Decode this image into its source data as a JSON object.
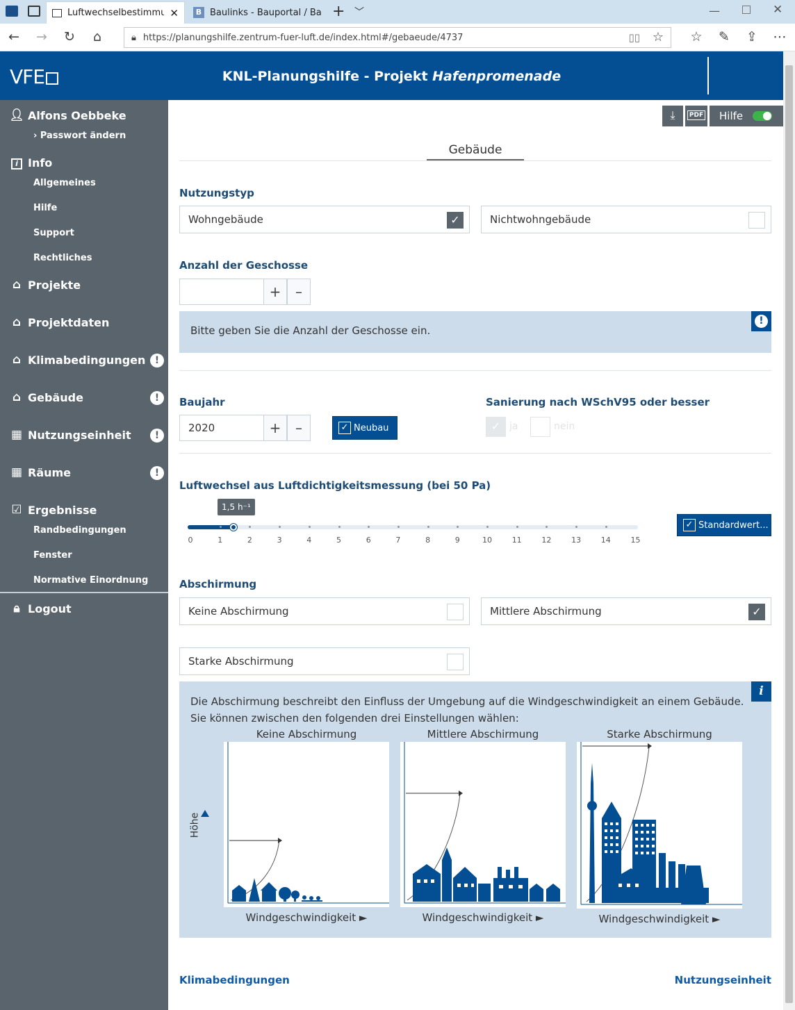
{
  "browser": {
    "tab1_title": "Luftwechselbestimmung",
    "tab2_title": "Baulinks - Bauportal / Baum",
    "url": "https://planungshilfe.zentrum-fuer-luft.de/index.html#/gebaeude/4737"
  },
  "header": {
    "logo": "VFE",
    "title_prefix": "KNL-Planungshilfe - Projekt ",
    "title_project": "Hafenpromenade"
  },
  "sidebar": {
    "user": "Alfons Oebbeke",
    "password_change": "› Passwort ändern",
    "info": "Info",
    "info_items": [
      "Allgemeines",
      "Hilfe",
      "Support",
      "Rechtliches"
    ],
    "projekte": "Projekte",
    "projektdaten": "Projektdaten",
    "klimabedingungen": "Klimabedingungen",
    "gebaeude": "Gebäude",
    "nutzungseinheit": "Nutzungseinheit",
    "raeume": "Räume",
    "ergebnisse": "Ergebnisse",
    "ergebnisse_items": [
      "Randbedingungen",
      "Fenster",
      "Normative Einordnung"
    ],
    "logout": "Logout",
    "warn_symbol": "!"
  },
  "toolbar": {
    "hilfe": "Hilfe",
    "hilfe_on": true
  },
  "main": {
    "tab_label": "Gebäude",
    "nutzungstyp": {
      "heading": "Nutzungstyp",
      "options": [
        {
          "label": "Wohngebäude",
          "checked": true
        },
        {
          "label": "Nichtwohngebäude",
          "checked": false
        }
      ]
    },
    "geschosse": {
      "heading": "Anzahl der Geschosse",
      "value": "",
      "plus": "+",
      "minus": "–",
      "hint": "Bitte geben Sie die Anzahl der Geschosse ein.",
      "hint_icon": "!"
    },
    "baujahr": {
      "heading": "Baujahr",
      "value": "2020",
      "plus": "+",
      "minus": "–",
      "neubau_label": "Neubau",
      "neubau_checked": true
    },
    "sanierung": {
      "heading": "Sanierung nach WSchV95 oder besser",
      "ja": "ja",
      "nein": "nein",
      "ja_checked": true
    },
    "luftwechsel": {
      "heading": "Luftwechsel aus Luftdichtigkeitsmessung (bei 50 Pa)",
      "value": 1.5,
      "tooltip": "1,5 h⁻¹",
      "min": 0,
      "max": 15,
      "ticks": [
        "0",
        "1",
        "2",
        "3",
        "4",
        "5",
        "6",
        "7",
        "8",
        "9",
        "10",
        "11",
        "12",
        "13",
        "14",
        "15"
      ],
      "standard_button": "Standardwert..."
    },
    "abschirmung": {
      "heading": "Abschirmung",
      "options": [
        {
          "label": "Keine Abschirmung",
          "checked": false
        },
        {
          "label": "Mittlere Abschirmung",
          "checked": true
        },
        {
          "label": "Starke Abschirmung",
          "checked": false
        }
      ],
      "info_icon": "i",
      "info_line1": "Die Abschirmung beschreibt den Einfluss der Umgebung auf die Windgeschwindigkeit an einem Gebäude.",
      "info_line2": "Sie können zwischen den folgenden drei Einstellungen wählen:",
      "diagrams": [
        {
          "title": "Keine Abschirmung",
          "xlabel": "Windgeschwindigkeit ►"
        },
        {
          "title": "Mittlere Abschirmung",
          "xlabel": "Windgeschwindigkeit ►"
        },
        {
          "title": "Starke Abschirmung",
          "xlabel": "Windgeschwindigkeit ►"
        }
      ],
      "ylabel": "Höhe"
    },
    "footer": {
      "prev": "Klimabedingungen",
      "next": "Nutzungseinheit"
    }
  },
  "colors": {
    "brand_blue": "#044f93",
    "sidebar": "#5a646d",
    "info_bg": "#cddceb"
  }
}
